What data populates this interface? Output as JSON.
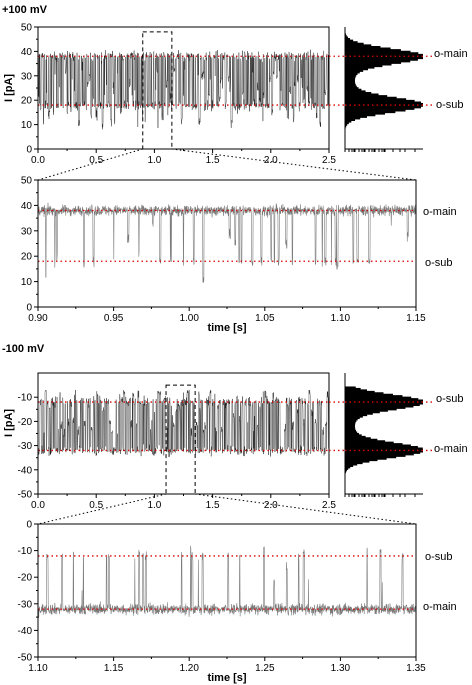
{
  "figure": {
    "sections": [
      {
        "title": "+100 mV",
        "ylabel": "I [pA]",
        "levels": [
          {
            "label": "o-main",
            "value": 38
          },
          {
            "label": "o-sub",
            "value": 18
          }
        ]
      },
      {
        "title": "-100 mV",
        "ylabel": "I [pA]",
        "levels": [
          {
            "label": "o-sub",
            "value": -12
          },
          {
            "label": "o-main",
            "value": -32
          }
        ]
      }
    ],
    "xlabel": "time [s]"
  },
  "colors": {
    "trace_overview": "#000000",
    "trace_zoom": "#7a7a7a",
    "level_line": "#dd0000",
    "histogram": "#000000"
  },
  "chart_data": [
    {
      "type": "line",
      "title": "+100 mV",
      "ylabel": "I [pA]",
      "xlabel": "",
      "xlim": [
        0,
        2.5
      ],
      "ylim": [
        0,
        50
      ],
      "xticks": [
        0.0,
        0.5,
        1.0,
        1.5,
        2.0,
        2.5
      ],
      "xtick_labels": [
        "0.0",
        "0.5",
        "1.0",
        "1.5",
        "2.0",
        "2.5"
      ],
      "yticks": [
        0,
        10,
        20,
        30,
        40,
        50
      ],
      "ytick_labels": [
        "0",
        "10",
        "20",
        "30",
        "40",
        "50"
      ],
      "reference_lines": [
        {
          "label": "o-main",
          "y": 38
        },
        {
          "label": "o-sub",
          "y": 18
        }
      ],
      "zoom_window": {
        "x": [
          0.9,
          1.15
        ],
        "y": [
          0,
          48
        ]
      },
      "series": [
        {
          "levels": [
            38,
            18
          ],
          "baseline": 38,
          "noise": 1.5,
          "event_rate": 220,
          "min_value": 8
        }
      ],
      "histogram": {
        "bins": [
          8,
          47
        ],
        "peaks": [
          38,
          18
        ]
      }
    },
    {
      "type": "line",
      "title": "",
      "xlabel": "time [s]",
      "ylabel": "",
      "xlim": [
        0.9,
        1.15
      ],
      "ylim": [
        0,
        50
      ],
      "xticks": [
        0.9,
        0.95,
        1.0,
        1.05,
        1.1,
        1.15
      ],
      "xtick_labels": [
        "0.90",
        "0.95",
        "1.00",
        "1.05",
        "1.10",
        "1.15"
      ],
      "yticks": [
        0,
        10,
        20,
        30,
        40,
        50
      ],
      "ytick_labels": [
        "0",
        "10",
        "20",
        "30",
        "40",
        "50"
      ],
      "reference_lines": [
        {
          "label": "o-main",
          "y": 38
        },
        {
          "label": "o-sub",
          "y": 18
        }
      ],
      "series": [
        {
          "levels": [
            38,
            18
          ],
          "baseline": 38,
          "noise": 1.5,
          "event_rate": 150,
          "min_value": 9
        }
      ]
    },
    {
      "type": "line",
      "title": "-100 mV",
      "ylabel": "I [pA]",
      "xlabel": "",
      "xlim": [
        0,
        2.5
      ],
      "ylim": [
        -50,
        0
      ],
      "xticks": [
        0.0,
        0.5,
        1.0,
        1.5,
        2.0,
        2.5
      ],
      "xtick_labels": [
        "0.0",
        "0.5",
        "1.0",
        "1.5",
        "2.0",
        "2.5"
      ],
      "yticks": [
        -50,
        -40,
        -30,
        -20,
        -10
      ],
      "ytick_labels": [
        "-50",
        "-40",
        "-30",
        "-20",
        "-10"
      ],
      "reference_lines": [
        {
          "label": "o-sub",
          "y": -12
        },
        {
          "label": "o-main",
          "y": -32
        }
      ],
      "zoom_window": {
        "x": [
          1.1,
          1.35
        ],
        "y": [
          -50,
          -5
        ]
      },
      "series": [
        {
          "levels": [
            -32,
            -12
          ],
          "baseline": -32,
          "noise": 1.5,
          "event_rate": 180,
          "max_value": -7
        }
      ],
      "histogram": {
        "bins": [
          -42,
          -6
        ],
        "peaks": [
          -32,
          -12
        ]
      }
    },
    {
      "type": "line",
      "title": "",
      "xlabel": "time [s]",
      "ylabel": "",
      "xlim": [
        1.1,
        1.35
      ],
      "ylim": [
        -50,
        0
      ],
      "xticks": [
        1.1,
        1.15,
        1.2,
        1.25,
        1.3,
        1.35
      ],
      "xtick_labels": [
        "1.10",
        "1.15",
        "1.20",
        "1.25",
        "1.30",
        "1.35"
      ],
      "yticks": [
        -50,
        -40,
        -30,
        -20,
        -10,
        0
      ],
      "ytick_labels": [
        "-50",
        "-40",
        "-30",
        "-20",
        "-10",
        "0"
      ],
      "reference_lines": [
        {
          "label": "o-sub",
          "y": -12
        },
        {
          "label": "o-main",
          "y": -32
        }
      ],
      "series": [
        {
          "levels": [
            -32,
            -12
          ],
          "baseline": -32,
          "noise": 1.5,
          "event_rate": 110,
          "max_value": -8
        }
      ]
    }
  ]
}
